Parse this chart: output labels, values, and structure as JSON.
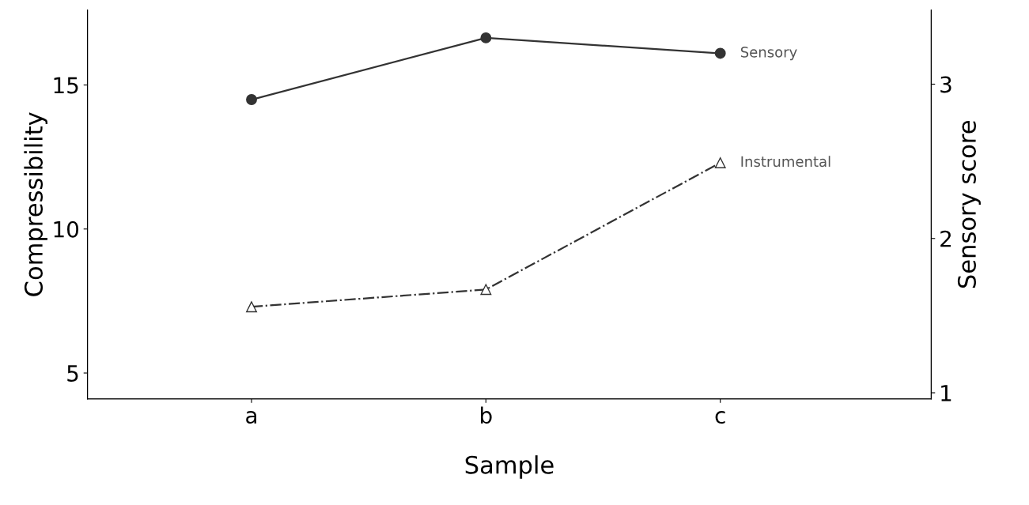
{
  "chart_data": {
    "type": "line",
    "xlabel": "Sample",
    "ylabel": "Compressibility",
    "y2label": "Sensory score",
    "categories": [
      "a",
      "b",
      "c"
    ],
    "series": [
      {
        "name": "Sensory",
        "color": "#333333",
        "values": [
          2.9,
          3.3,
          3.2
        ],
        "axis": "y2",
        "marker": "circle",
        "line_style": "solid"
      },
      {
        "name": "Instrumental",
        "color": "#333333",
        "values": [
          7.3,
          7.9,
          12.3
        ],
        "marker": "triangle",
        "line_style": "dashed"
      }
    ],
    "ylim": [
      4.1,
      17.6
    ],
    "yticks": [
      5,
      10,
      15
    ],
    "y2lim": [
      0.96,
      3.48
    ],
    "y2ticks": [
      1,
      2,
      3
    ],
    "grid": false,
    "legend": false
  }
}
